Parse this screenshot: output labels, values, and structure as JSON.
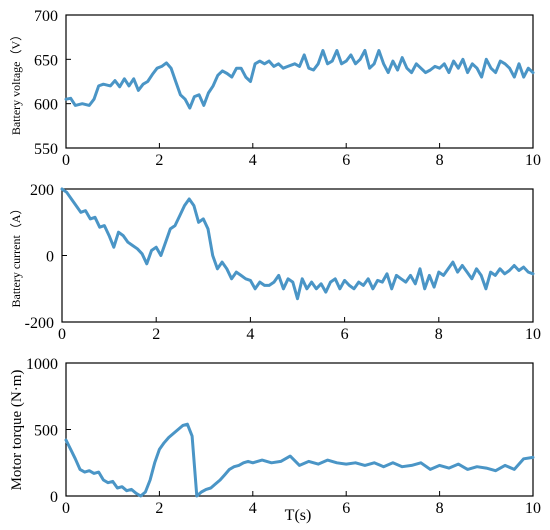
{
  "chart_data": [
    {
      "type": "line",
      "ylabel": "Battery voltage（V）",
      "xlabel": "",
      "xlim": [
        0,
        10
      ],
      "ylim": [
        550,
        700
      ],
      "xticks": [
        "0",
        "2",
        "4",
        "6",
        "8",
        "10"
      ],
      "yticks": [
        "550",
        "600",
        "650",
        "700"
      ],
      "series_color": "#4a95c6",
      "x": [
        0,
        0.1,
        0.2,
        0.35,
        0.5,
        0.6,
        0.7,
        0.8,
        0.95,
        1.05,
        1.15,
        1.25,
        1.35,
        1.45,
        1.55,
        1.65,
        1.75,
        1.85,
        1.95,
        2.05,
        2.15,
        2.25,
        2.35,
        2.45,
        2.55,
        2.65,
        2.75,
        2.85,
        2.95,
        3.05,
        3.15,
        3.25,
        3.35,
        3.45,
        3.55,
        3.65,
        3.75,
        3.85,
        3.95,
        4.05,
        4.15,
        4.25,
        4.35,
        4.45,
        4.55,
        4.65,
        4.75,
        4.9,
        5.0,
        5.1,
        5.2,
        5.3,
        5.4,
        5.5,
        5.6,
        5.7,
        5.8,
        5.9,
        6.0,
        6.1,
        6.2,
        6.3,
        6.4,
        6.5,
        6.6,
        6.7,
        6.8,
        6.9,
        7.0,
        7.1,
        7.2,
        7.3,
        7.4,
        7.5,
        7.6,
        7.7,
        7.8,
        7.9,
        8.0,
        8.1,
        8.2,
        8.3,
        8.4,
        8.5,
        8.6,
        8.7,
        8.8,
        8.9,
        9.0,
        9.1,
        9.2,
        9.3,
        9.4,
        9.5,
        9.6,
        9.7,
        9.8,
        9.9,
        10.0
      ],
      "y": [
        605,
        606,
        598,
        600,
        598,
        605,
        620,
        622,
        620,
        626,
        619,
        628,
        620,
        628,
        615,
        622,
        625,
        633,
        640,
        642,
        646,
        640,
        625,
        610,
        605,
        595,
        608,
        610,
        598,
        612,
        620,
        632,
        637,
        634,
        630,
        640,
        640,
        630,
        625,
        645,
        648,
        645,
        648,
        642,
        645,
        640,
        642,
        645,
        642,
        655,
        640,
        638,
        645,
        660,
        645,
        648,
        660,
        645,
        648,
        655,
        645,
        650,
        660,
        640,
        645,
        660,
        645,
        635,
        648,
        638,
        652,
        640,
        635,
        645,
        640,
        635,
        638,
        642,
        640,
        645,
        635,
        648,
        640,
        650,
        635,
        645,
        640,
        630,
        650,
        640,
        635,
        648,
        645,
        640,
        630,
        645,
        630,
        640,
        635
      ]
    },
    {
      "type": "line",
      "ylabel": "Battery current（A）",
      "xlabel": "",
      "xlim": [
        0,
        10
      ],
      "ylim": [
        -200,
        200
      ],
      "xticks": [
        "0",
        "2",
        "4",
        "6",
        "8",
        "10"
      ],
      "yticks": [
        "-200",
        "0",
        "200"
      ],
      "series_color": "#4a95c6",
      "x": [
        0,
        0.1,
        0.2,
        0.3,
        0.4,
        0.5,
        0.6,
        0.7,
        0.8,
        0.9,
        1.0,
        1.1,
        1.2,
        1.3,
        1.4,
        1.5,
        1.6,
        1.7,
        1.8,
        1.9,
        2.0,
        2.1,
        2.2,
        2.3,
        2.4,
        2.5,
        2.6,
        2.7,
        2.8,
        2.9,
        3.0,
        3.1,
        3.2,
        3.3,
        3.4,
        3.5,
        3.6,
        3.7,
        3.8,
        3.9,
        4.0,
        4.1,
        4.2,
        4.3,
        4.4,
        4.5,
        4.6,
        4.7,
        4.8,
        4.9,
        5.0,
        5.1,
        5.2,
        5.3,
        5.4,
        5.5,
        5.6,
        5.7,
        5.8,
        5.9,
        6.0,
        6.1,
        6.2,
        6.3,
        6.4,
        6.5,
        6.6,
        6.7,
        6.8,
        6.9,
        7.0,
        7.1,
        7.2,
        7.3,
        7.4,
        7.5,
        7.6,
        7.7,
        7.8,
        7.9,
        8.0,
        8.1,
        8.2,
        8.3,
        8.4,
        8.5,
        8.6,
        8.7,
        8.8,
        8.9,
        9.0,
        9.1,
        9.2,
        9.3,
        9.4,
        9.5,
        9.6,
        9.7,
        9.8,
        9.9,
        10.0
      ],
      "y": [
        200,
        190,
        170,
        150,
        130,
        135,
        110,
        115,
        85,
        90,
        60,
        25,
        70,
        60,
        40,
        30,
        20,
        5,
        -25,
        15,
        25,
        0,
        40,
        80,
        90,
        120,
        150,
        170,
        150,
        100,
        110,
        80,
        0,
        -40,
        -20,
        -40,
        -70,
        -50,
        -60,
        -70,
        -75,
        -100,
        -80,
        -90,
        -90,
        -80,
        -60,
        -100,
        -70,
        -80,
        -130,
        -70,
        -100,
        -80,
        -100,
        -85,
        -110,
        -80,
        -70,
        -100,
        -75,
        -90,
        -100,
        -80,
        -90,
        -70,
        -100,
        -75,
        -80,
        -55,
        -100,
        -60,
        -70,
        -80,
        -60,
        -85,
        -40,
        -100,
        -60,
        -95,
        -50,
        -60,
        -40,
        -20,
        -50,
        -30,
        -50,
        -70,
        -40,
        -60,
        -100,
        -50,
        -60,
        -40,
        -55,
        -45,
        -30,
        -45,
        -35,
        -50,
        -55
      ]
    },
    {
      "type": "line",
      "ylabel": "Motor torque (N·m)",
      "xlabel": "T(s)",
      "xlim": [
        0,
        10
      ],
      "ylim": [
        0,
        1000
      ],
      "xticks": [
        "0",
        "2",
        "4",
        "6",
        "8",
        "10"
      ],
      "yticks": [
        "0",
        "500",
        "1000"
      ],
      "series_color": "#4a95c6",
      "x": [
        0,
        0.1,
        0.2,
        0.3,
        0.4,
        0.5,
        0.6,
        0.7,
        0.8,
        0.9,
        1.0,
        1.1,
        1.2,
        1.3,
        1.4,
        1.5,
        1.6,
        1.7,
        1.8,
        1.9,
        2.0,
        2.1,
        2.2,
        2.3,
        2.4,
        2.5,
        2.6,
        2.7,
        2.8,
        2.9,
        3.0,
        3.1,
        3.2,
        3.3,
        3.4,
        3.5,
        3.6,
        3.7,
        3.8,
        3.9,
        4.0,
        4.2,
        4.4,
        4.6,
        4.8,
        5.0,
        5.2,
        5.4,
        5.6,
        5.8,
        6.0,
        6.2,
        6.4,
        6.6,
        6.8,
        7.0,
        7.2,
        7.4,
        7.6,
        7.8,
        8.0,
        8.2,
        8.4,
        8.6,
        8.8,
        9.0,
        9.2,
        9.4,
        9.6,
        9.8,
        10.0
      ],
      "y": [
        420,
        350,
        280,
        200,
        180,
        190,
        170,
        180,
        120,
        100,
        110,
        60,
        70,
        40,
        50,
        20,
        0,
        30,
        120,
        250,
        350,
        400,
        440,
        470,
        500,
        530,
        540,
        450,
        0,
        30,
        50,
        60,
        90,
        120,
        160,
        200,
        220,
        230,
        250,
        260,
        250,
        270,
        250,
        260,
        300,
        230,
        260,
        240,
        270,
        250,
        240,
        250,
        230,
        250,
        220,
        250,
        220,
        230,
        250,
        200,
        230,
        210,
        240,
        200,
        220,
        210,
        190,
        230,
        200,
        280,
        290
      ]
    }
  ]
}
